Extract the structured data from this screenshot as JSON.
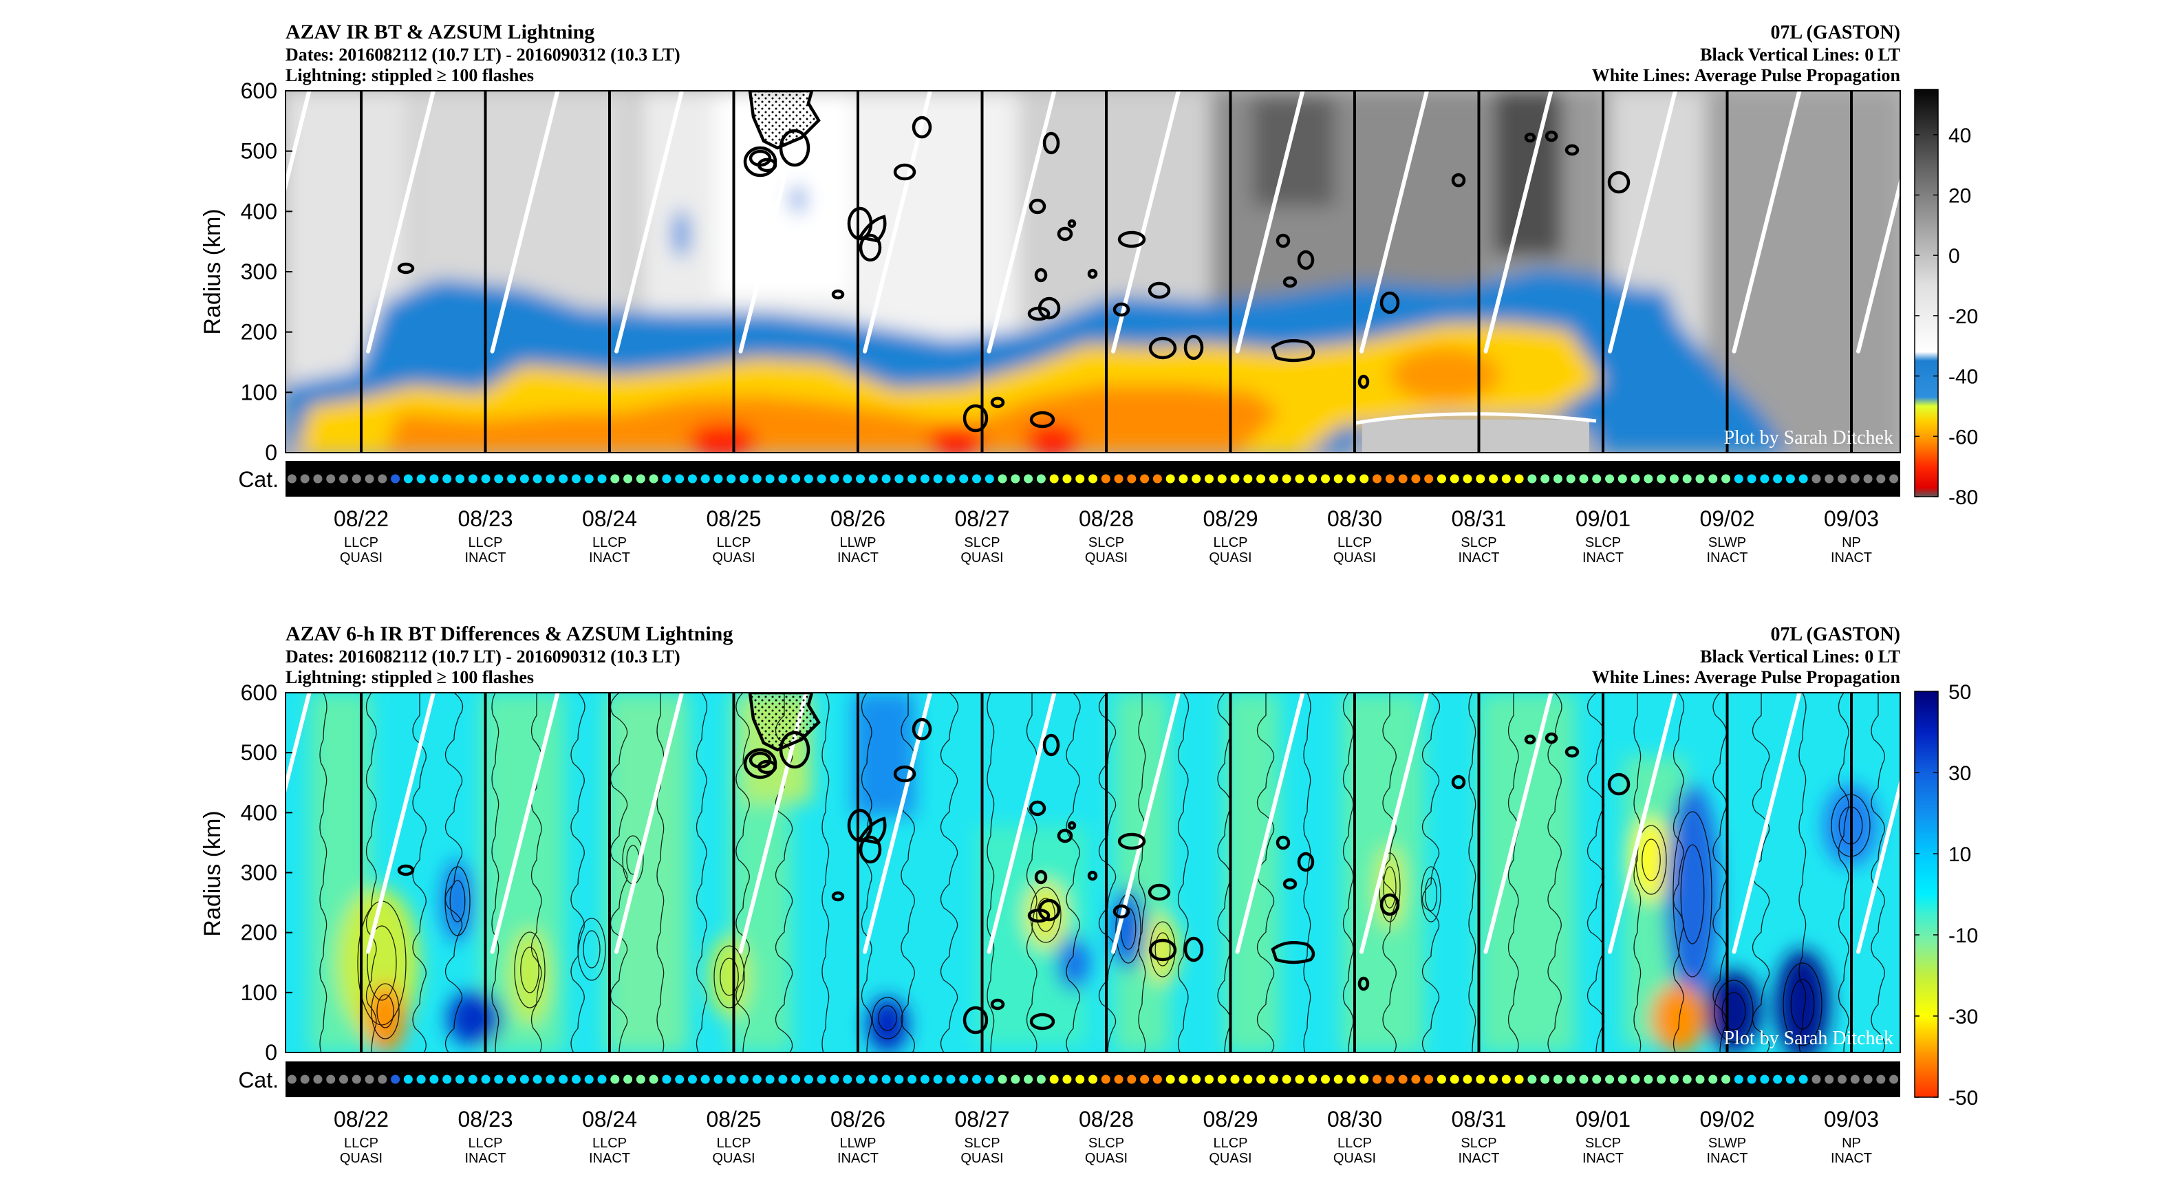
{
  "credit": "Plot by Sarah Ditchek",
  "colors": {
    "plot_bg_top": "#8a8a8a",
    "plot_bg_bottom": "#25e4f2",
    "category_strip": "#000000",
    "white_lines": "#ffffff",
    "black_lines": "#000000"
  },
  "day_columns": [
    {
      "date": "08/22",
      "stage": "LLCP",
      "status": "QUASI"
    },
    {
      "date": "08/23",
      "stage": "LLCP",
      "status": "INACT"
    },
    {
      "date": "08/24",
      "stage": "LLCP",
      "status": "INACT"
    },
    {
      "date": "08/25",
      "stage": "LLCP",
      "status": "QUASI"
    },
    {
      "date": "08/26",
      "stage": "LLWP",
      "status": "INACT"
    },
    {
      "date": "08/27",
      "stage": "SLCP",
      "status": "QUASI"
    },
    {
      "date": "08/28",
      "stage": "SLCP",
      "status": "QUASI"
    },
    {
      "date": "08/29",
      "stage": "LLCP",
      "status": "QUASI"
    },
    {
      "date": "08/30",
      "stage": "LLCP",
      "status": "QUASI"
    },
    {
      "date": "08/31",
      "stage": "SLCP",
      "status": "INACT"
    },
    {
      "date": "09/01",
      "stage": "SLCP",
      "status": "INACT"
    },
    {
      "date": "09/02",
      "stage": "SLWP",
      "status": "INACT"
    },
    {
      "date": "09/03",
      "stage": "NP",
      "status": "INACT"
    }
  ],
  "category_dots": [
    "#7f7f7f",
    "#7f7f7f",
    "#7f7f7f",
    "#7f7f7f",
    "#7f7f7f",
    "#7f7f7f",
    "#7f7f7f",
    "#7f7f7f",
    "#2060e0",
    "#00d8ff",
    "#00d8ff",
    "#00d8ff",
    "#00d8ff",
    "#00d8ff",
    "#00d8ff",
    "#00d8ff",
    "#00d8ff",
    "#00d8ff",
    "#00d8ff",
    "#00d8ff",
    "#00d8ff",
    "#00d8ff",
    "#00d8ff",
    "#00d8ff",
    "#00d8ff",
    "#80ffa0",
    "#80ffa0",
    "#80ffa0",
    "#80ffa0",
    "#00d8ff",
    "#00d8ff",
    "#00d8ff",
    "#00d8ff",
    "#00d8ff",
    "#00d8ff",
    "#00d8ff",
    "#00d8ff",
    "#00d8ff",
    "#00d8ff",
    "#00d8ff",
    "#00d8ff",
    "#00d8ff",
    "#00d8ff",
    "#00d8ff",
    "#00d8ff",
    "#00d8ff",
    "#00d8ff",
    "#00d8ff",
    "#00d8ff",
    "#00d8ff",
    "#00d8ff",
    "#00d8ff",
    "#00d8ff",
    "#00d8ff",
    "#00d8ff",
    "#80ffa0",
    "#80ffa0",
    "#80ffa0",
    "#80ffa0",
    "#ffff00",
    "#ffff00",
    "#ffff00",
    "#ffff00",
    "#ff8000",
    "#ff8000",
    "#ff8000",
    "#ff8000",
    "#ff8000",
    "#ffff00",
    "#ffff00",
    "#ffff00",
    "#ffff00",
    "#ffff00",
    "#ffff00",
    "#ffff00",
    "#ffff00",
    "#ffff00",
    "#ffff00",
    "#ffff00",
    "#ffff00",
    "#ffff00",
    "#ffff00",
    "#ffff00",
    "#ffff00",
    "#ff8000",
    "#ff8000",
    "#ff8000",
    "#ff8000",
    "#ff8000",
    "#ffff00",
    "#ffff00",
    "#ffff00",
    "#ffff00",
    "#ffff00",
    "#ffff00",
    "#ffff00",
    "#80ffa0",
    "#80ffa0",
    "#80ffa0",
    "#80ffa0",
    "#80ffa0",
    "#80ffa0",
    "#80ffa0",
    "#80ffa0",
    "#80ffa0",
    "#80ffa0",
    "#80ffa0",
    "#80ffa0",
    "#80ffa0",
    "#80ffa0",
    "#80ffa0",
    "#80ffa0",
    "#00d8ff",
    "#00d8ff",
    "#00d8ff",
    "#00d8ff",
    "#00d8ff",
    "#00d8ff",
    "#7f7f7f",
    "#7f7f7f",
    "#7f7f7f",
    "#7f7f7f",
    "#7f7f7f",
    "#7f7f7f",
    "#7f7f7f"
  ],
  "chart_data": [
    {
      "type": "heatmap",
      "title": "AZAV IR BT & AZSUM Lightning",
      "subtitle_dates": "Dates: 2016082112 (10.7 LT) - 2016090312 (10.3 LT)",
      "subtitle_lightning": "Lightning: stippled ≥ 100 flashes",
      "storm": "07L (GASTON)",
      "note_black": "Black Vertical Lines: 0 LT",
      "note_white": "White Lines: Average Pulse Propagation",
      "ylabel": "Radius (km)",
      "cat_label": "Cat.",
      "ylim": [
        0,
        600
      ],
      "yticks": [
        "0",
        "100",
        "200",
        "300",
        "400",
        "500",
        "600"
      ],
      "colorbar": {
        "range": [
          -80,
          55
        ],
        "ticks": [
          "40",
          "20",
          "0",
          "-20",
          "-40",
          "-60",
          "-80"
        ],
        "tick_values": [
          40,
          20,
          0,
          -20,
          -40,
          -60,
          -80
        ],
        "stops": [
          {
            "v": -80,
            "c": "#5a5a5a"
          },
          {
            "v": -77,
            "c": "#e00000"
          },
          {
            "v": -70,
            "c": "#ff2a00"
          },
          {
            "v": -62,
            "c": "#ff8c00"
          },
          {
            "v": -55,
            "c": "#ffd000"
          },
          {
            "v": -50,
            "c": "#e0ff30"
          },
          {
            "v": -47,
            "c": "#3090e0"
          },
          {
            "v": -35,
            "c": "#1e7fd0"
          },
          {
            "v": -32,
            "c": "#ffffff"
          },
          {
            "v": -10,
            "c": "#e0e0e0"
          },
          {
            "v": 10,
            "c": "#a0a0a0"
          },
          {
            "v": 30,
            "c": "#606060"
          },
          {
            "v": 55,
            "c": "#050505"
          }
        ]
      }
    },
    {
      "type": "heatmap",
      "title": "AZAV 6-h IR BT Differences & AZSUM Lightning",
      "subtitle_dates": "Dates: 2016082112 (10.7 LT) - 2016090312 (10.3 LT)",
      "subtitle_lightning": "Lightning: stippled ≥ 100 flashes",
      "storm": "07L (GASTON)",
      "note_black": "Black Vertical Lines: 0 LT",
      "note_white": "White Lines: Average Pulse Propagation",
      "ylabel": "Radius (km)",
      "cat_label": "Cat.",
      "ylim": [
        0,
        600
      ],
      "yticks": [
        "0",
        "100",
        "200",
        "300",
        "400",
        "500",
        "600"
      ],
      "colorbar": {
        "range": [
          -50,
          50
        ],
        "ticks": [
          "50",
          "30",
          "10",
          "-10",
          "-30",
          "-50"
        ],
        "tick_values": [
          50,
          30,
          10,
          -10,
          -30,
          -50
        ],
        "stops": [
          {
            "v": -50,
            "c": "#ff3000"
          },
          {
            "v": -40,
            "c": "#ff9000"
          },
          {
            "v": -30,
            "c": "#ffff00"
          },
          {
            "v": -20,
            "c": "#c0f040"
          },
          {
            "v": -12,
            "c": "#80f0a0"
          },
          {
            "v": -5,
            "c": "#40f0d0"
          },
          {
            "v": 0,
            "c": "#00f0ff"
          },
          {
            "v": 10,
            "c": "#00c8ff"
          },
          {
            "v": 20,
            "c": "#1090f0"
          },
          {
            "v": 30,
            "c": "#1060e0"
          },
          {
            "v": 40,
            "c": "#0020c0"
          },
          {
            "v": 50,
            "c": "#00007a"
          }
        ]
      }
    }
  ]
}
